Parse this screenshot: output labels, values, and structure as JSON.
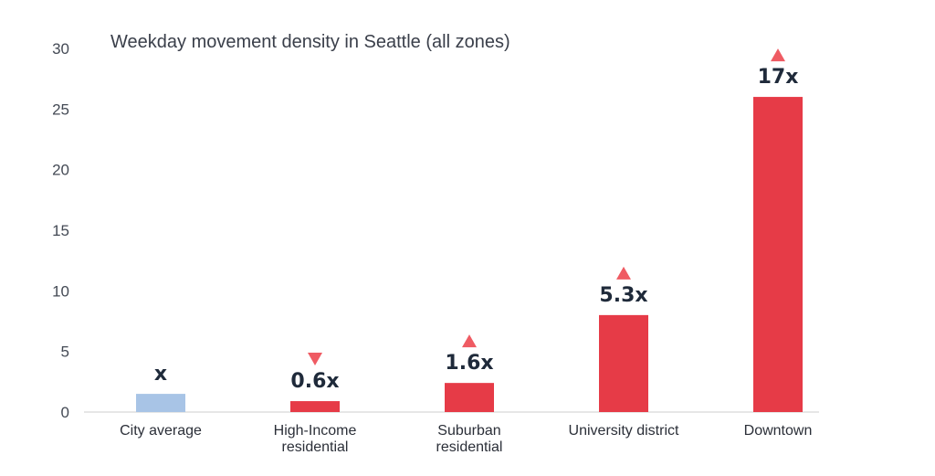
{
  "chart_data": {
    "type": "bar",
    "title": "Weekday movement density in Seattle (all zones)",
    "xlabel": "",
    "ylabel": "",
    "ylim": [
      0,
      30
    ],
    "yticks": [
      0,
      5,
      10,
      15,
      20,
      25,
      30
    ],
    "grid": false,
    "categories": [
      "City average",
      "High-Income residential",
      "Suburban residential",
      "University district",
      "Downtown"
    ],
    "category_lines": [
      [
        "City average"
      ],
      [
        "High-Income",
        "residential"
      ],
      [
        "Suburban",
        "residential"
      ],
      [
        "University district"
      ],
      [
        "Downtown"
      ]
    ],
    "values": [
      1.5,
      0.9,
      2.4,
      8.0,
      26.0
    ],
    "data_labels": [
      "x",
      "0.6x",
      "1.6x",
      "5.3x",
      "17x"
    ],
    "trend": [
      "none",
      "down",
      "up",
      "up",
      "up"
    ],
    "colors": {
      "baseline": "#a8c4e6",
      "bar": "#e63b47",
      "marker": "#ef5b63",
      "axis": "#cccccc"
    }
  }
}
